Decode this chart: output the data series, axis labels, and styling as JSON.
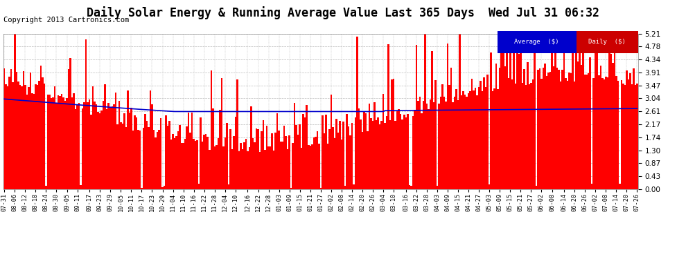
{
  "title": "Daily Solar Energy & Running Average Value Last 365 Days  Wed Jul 31 06:32",
  "copyright": "Copyright 2013 Cartronics.com",
  "yticks": [
    0.0,
    0.43,
    0.87,
    1.3,
    1.74,
    2.17,
    2.61,
    3.04,
    3.47,
    3.91,
    4.34,
    4.78,
    5.21
  ],
  "ylim": [
    0.0,
    5.21
  ],
  "bar_color": "#ff0000",
  "avg_color": "#0000cc",
  "background_color": "#ffffff",
  "plot_bg_color": "#ffffff",
  "grid_color": "#bbbbbb",
  "legend_avg_bg": "#0000cc",
  "legend_daily_bg": "#cc0000",
  "legend_text_color": "#ffffff",
  "title_fontsize": 12,
  "copyright_fontsize": 7.5,
  "x_labels": [
    "07-31",
    "08-06",
    "08-12",
    "08-18",
    "08-24",
    "08-30",
    "09-05",
    "09-11",
    "09-17",
    "09-23",
    "09-29",
    "10-05",
    "10-11",
    "10-17",
    "10-23",
    "10-29",
    "11-04",
    "11-10",
    "11-16",
    "11-22",
    "11-28",
    "12-04",
    "12-10",
    "12-16",
    "12-22",
    "12-28",
    "01-03",
    "01-09",
    "01-15",
    "01-21",
    "01-27",
    "02-02",
    "02-08",
    "02-14",
    "02-20",
    "02-26",
    "03-04",
    "03-10",
    "03-16",
    "03-22",
    "03-28",
    "04-03",
    "04-09",
    "04-15",
    "04-21",
    "04-27",
    "05-03",
    "05-09",
    "05-15",
    "05-21",
    "05-27",
    "06-02",
    "06-08",
    "06-14",
    "06-20",
    "06-26",
    "07-02",
    "07-08",
    "07-14",
    "07-20",
    "07-26"
  ]
}
